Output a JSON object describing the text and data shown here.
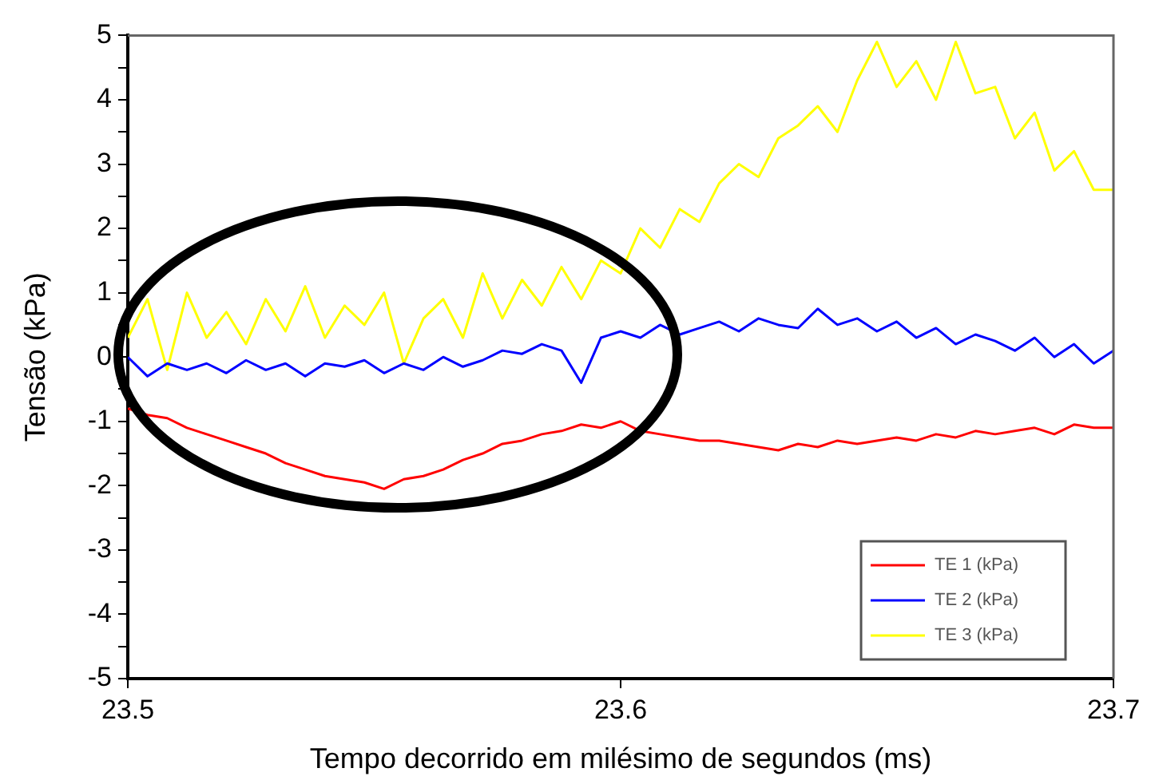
{
  "chart_data": {
    "type": "line",
    "xlabel": "Tempo decorrido em milésimo de segundos (ms)",
    "ylabel": "Tensão (kPa)",
    "x": [
      23.5,
      23.504,
      23.508,
      23.512,
      23.516,
      23.52,
      23.524,
      23.528,
      23.532,
      23.536,
      23.54,
      23.544,
      23.548,
      23.552,
      23.556,
      23.56,
      23.564,
      23.568,
      23.572,
      23.576,
      23.58,
      23.584,
      23.588,
      23.592,
      23.596,
      23.6,
      23.604,
      23.608,
      23.612,
      23.616,
      23.62,
      23.624,
      23.628,
      23.632,
      23.636,
      23.64,
      23.644,
      23.648,
      23.652,
      23.656,
      23.66,
      23.664,
      23.668,
      23.672,
      23.676,
      23.68,
      23.684,
      23.688,
      23.692,
      23.696,
      23.7
    ],
    "series": [
      {
        "name": "TE 1 (kPa)",
        "color": "#ff0000",
        "values": [
          -0.8,
          -0.9,
          -0.95,
          -1.1,
          -1.2,
          -1.3,
          -1.4,
          -1.5,
          -1.65,
          -1.75,
          -1.85,
          -1.9,
          -1.95,
          -2.05,
          -1.9,
          -1.85,
          -1.75,
          -1.6,
          -1.5,
          -1.35,
          -1.3,
          -1.2,
          -1.15,
          -1.05,
          -1.1,
          -1.0,
          -1.15,
          -1.2,
          -1.25,
          -1.3,
          -1.3,
          -1.35,
          -1.4,
          -1.45,
          -1.35,
          -1.4,
          -1.3,
          -1.35,
          -1.3,
          -1.25,
          -1.3,
          -1.2,
          -1.25,
          -1.15,
          -1.2,
          -1.15,
          -1.1,
          -1.2,
          -1.05,
          -1.1,
          -1.1
        ]
      },
      {
        "name": "TE 2 (kPa)",
        "color": "#0000ff",
        "values": [
          0.0,
          -0.3,
          -0.1,
          -0.2,
          -0.1,
          -0.25,
          -0.05,
          -0.2,
          -0.1,
          -0.3,
          -0.1,
          -0.15,
          -0.05,
          -0.25,
          -0.1,
          -0.2,
          0.0,
          -0.15,
          -0.05,
          0.1,
          0.05,
          0.2,
          0.1,
          -0.4,
          0.3,
          0.4,
          0.3,
          0.5,
          0.35,
          0.45,
          0.55,
          0.4,
          0.6,
          0.5,
          0.45,
          0.75,
          0.5,
          0.6,
          0.4,
          0.55,
          0.3,
          0.45,
          0.2,
          0.35,
          0.25,
          0.1,
          0.3,
          0.0,
          0.2,
          -0.1,
          0.1
        ]
      },
      {
        "name": "TE 3 (kPa)",
        "color": "#ffff00",
        "values": [
          0.3,
          0.9,
          -0.2,
          1.0,
          0.3,
          0.7,
          0.2,
          0.9,
          0.4,
          1.1,
          0.3,
          0.8,
          0.5,
          1.0,
          -0.1,
          0.6,
          0.9,
          0.3,
          1.3,
          0.6,
          1.2,
          0.8,
          1.4,
          0.9,
          1.5,
          1.3,
          2.0,
          1.7,
          2.3,
          2.1,
          2.7,
          3.0,
          2.8,
          3.4,
          3.6,
          3.9,
          3.5,
          4.3,
          4.9,
          4.2,
          4.6,
          4.0,
          4.9,
          4.1,
          4.2,
          3.4,
          3.8,
          2.9,
          3.2,
          2.6,
          2.6
        ]
      }
    ],
    "xlim": [
      23.5,
      23.7
    ],
    "xticks": [
      23.5,
      23.6,
      23.7
    ],
    "ylim": [
      -5,
      5
    ],
    "yticks": [
      -5,
      {
        "value": -4.5,
        "label": null
      },
      -4,
      {
        "value": -3.5,
        "label": null
      },
      -3,
      {
        "value": -2.5,
        "label": null
      },
      -2,
      {
        "value": -1.5,
        "label": null
      },
      -1,
      {
        "value": -0.5,
        "label": null
      },
      0,
      {
        "value": 0.5,
        "label": null
      },
      1,
      {
        "value": 1.5,
        "label": null
      },
      2,
      {
        "value": 2.5,
        "label": null
      },
      3,
      {
        "value": 3.5,
        "label": null
      },
      4,
      {
        "value": 4.5,
        "label": null
      },
      5
    ],
    "grid": false,
    "legend": "bottom right",
    "marker": "none",
    "line_style": "solid"
  }
}
